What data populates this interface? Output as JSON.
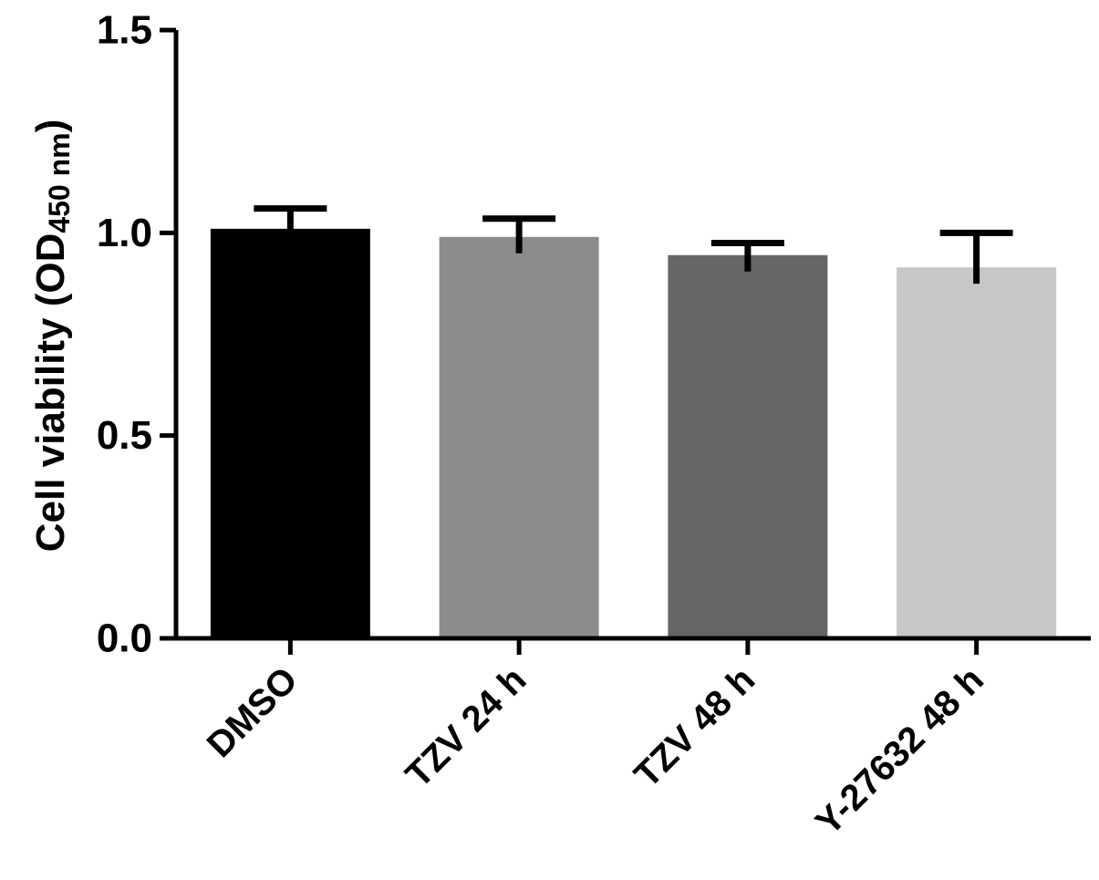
{
  "chart_data": {
    "type": "bar",
    "title": "",
    "xlabel": "",
    "ylabel": {
      "main": "Cell viability (OD",
      "subscript": "450 nm",
      "suffix": ")"
    },
    "ylim": [
      0,
      1.5
    ],
    "yticks": [
      "0.0",
      "0.5",
      "1.0",
      "1.5"
    ],
    "grid": false,
    "legend": "none",
    "categories": [
      "DMSO",
      "TZV 24 h",
      "TZV 48 h",
      "Y-27632 48 h"
    ],
    "values": [
      1.01,
      0.99,
      0.945,
      0.915
    ],
    "errors": [
      0.05,
      0.045,
      0.03,
      0.085
    ],
    "colors": [
      "#000000",
      "#8c8c8c",
      "#666666",
      "#c8c8c8"
    ]
  }
}
